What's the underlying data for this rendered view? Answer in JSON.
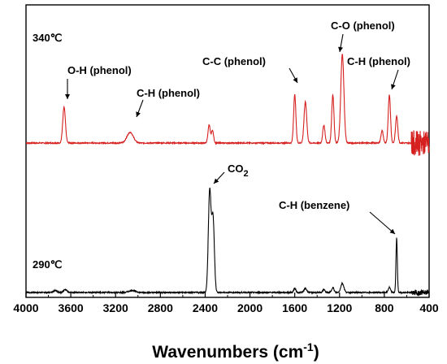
{
  "chart_data": {
    "type": "line",
    "title": "",
    "xlabel": "Wavenumbers (cm",
    "xlabel_sup": "-1",
    "xlabel_close": ")",
    "ylabel": "",
    "xlim": [
      4000,
      400
    ],
    "x_reversed": true,
    "xticks": [
      "4000",
      "3600",
      "3200",
      "2800",
      "2400",
      "2000",
      "1600",
      "1200",
      "800",
      "400"
    ],
    "yticks_shown": false,
    "grid": false,
    "legend": "none",
    "series": [
      {
        "name": "340℃",
        "color": "#d62020",
        "baseline": 0,
        "peaks": [
          {
            "x": 3660,
            "height": 0.4,
            "width": 12
          },
          {
            "x": 3070,
            "height": 0.12,
            "width": 28
          },
          {
            "x": 2365,
            "height": 0.2,
            "width": 10
          },
          {
            "x": 2335,
            "height": 0.14,
            "width": 10
          },
          {
            "x": 1600,
            "height": 0.54,
            "width": 10
          },
          {
            "x": 1505,
            "height": 0.46,
            "width": 12
          },
          {
            "x": 1340,
            "height": 0.2,
            "width": 10
          },
          {
            "x": 1260,
            "height": 0.54,
            "width": 10
          },
          {
            "x": 1175,
            "height": 0.99,
            "width": 14
          },
          {
            "x": 820,
            "height": 0.14,
            "width": 10
          },
          {
            "x": 755,
            "height": 0.54,
            "width": 10
          },
          {
            "x": 690,
            "height": 0.3,
            "width": 10
          }
        ]
      },
      {
        "name": "290℃",
        "color": "#000000",
        "baseline": 0,
        "peaks": [
          {
            "x": 3740,
            "height": 0.02,
            "width": 15
          },
          {
            "x": 3650,
            "height": 0.03,
            "width": 15
          },
          {
            "x": 3050,
            "height": 0.02,
            "width": 30
          },
          {
            "x": 2360,
            "height": 1.0,
            "width": 12
          },
          {
            "x": 2330,
            "height": 0.74,
            "width": 12
          },
          {
            "x": 1600,
            "height": 0.04,
            "width": 10
          },
          {
            "x": 1505,
            "height": 0.04,
            "width": 12
          },
          {
            "x": 1340,
            "height": 0.03,
            "width": 10
          },
          {
            "x": 1260,
            "height": 0.05,
            "width": 10
          },
          {
            "x": 1175,
            "height": 0.09,
            "width": 14
          },
          {
            "x": 755,
            "height": 0.05,
            "width": 10
          },
          {
            "x": 690,
            "height": 0.54,
            "width": 6
          }
        ]
      }
    ],
    "series_labels": [
      "340℃",
      "290℃"
    ],
    "annotations": [
      {
        "text": "O-H (phenol)",
        "x": 3660,
        "series": 0
      },
      {
        "text": "C-H (phenol)",
        "x": 3070,
        "series": 0
      },
      {
        "text": "C-C (phenol)",
        "x": 1505,
        "series": 0
      },
      {
        "text": "C-O (phenol)",
        "x": 1175,
        "series": 0
      },
      {
        "text": "C-H (phenol)",
        "x": 755,
        "series": 0
      },
      {
        "text": "CO",
        "sub": "2",
        "x": 2360,
        "series": 1
      },
      {
        "text": "C-H (benzene)",
        "x": 690,
        "series": 1
      }
    ]
  }
}
